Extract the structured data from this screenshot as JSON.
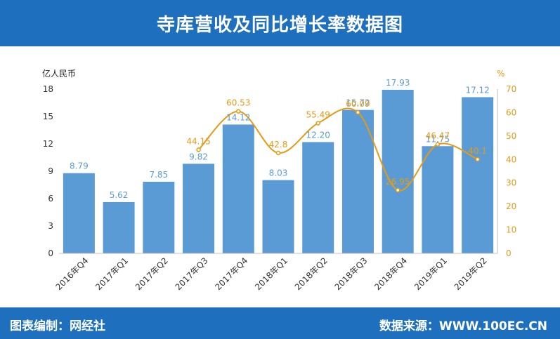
{
  "header": {
    "title": "寺库营收及同比增长率数据图"
  },
  "footer": {
    "left": "图表编制：网经社",
    "right": "数据来源：WWW.100EC.CN"
  },
  "colors": {
    "header_bg": "#1f6fbf",
    "bar": "#5b9bd5",
    "line": "#e59a16",
    "axis_text": "#444444"
  },
  "chart_data": {
    "type": "bar",
    "categories": [
      "2016年Q4",
      "2017年Q1",
      "2017年Q2",
      "2017年Q3",
      "2017年Q4",
      "2018年Q1",
      "2018年Q2",
      "2018年Q3",
      "2018年Q4",
      "2019年Q1",
      "2019年Q2"
    ],
    "series": [
      {
        "type": "bar",
        "axis": "left",
        "values": [
          8.79,
          5.62,
          7.85,
          9.82,
          14.12,
          8.03,
          12.2,
          15.72,
          17.93,
          11.75,
          17.12
        ],
        "labels": [
          "8.79",
          "5.62",
          "7.85",
          "9.82",
          "14.12",
          "8.03",
          "12.20",
          "15.72",
          "17.93",
          "11.75",
          "17.12"
        ]
      },
      {
        "type": "line",
        "axis": "right",
        "smooth": true,
        "values": [
          null,
          null,
          null,
          44.15,
          60.53,
          42.8,
          55.49,
          60.09,
          26.95,
          46.47,
          40.1
        ],
        "labels": [
          "",
          "",
          "",
          "44.15",
          "60.53",
          "42.8",
          "55.49",
          "60.09",
          "26.95",
          "46.47",
          "40.1"
        ]
      }
    ],
    "ylabel": "亿人民币",
    "ylim": [
      0,
      18
    ],
    "yticks": [
      "0",
      "3",
      "6",
      "9",
      "12",
      "15",
      "18"
    ],
    "y2label": "%",
    "y2lim": [
      0,
      70
    ],
    "y2ticks": [
      "0",
      "10",
      "20",
      "30",
      "40",
      "50",
      "60",
      "70"
    ],
    "grid": false,
    "legend": "none"
  }
}
